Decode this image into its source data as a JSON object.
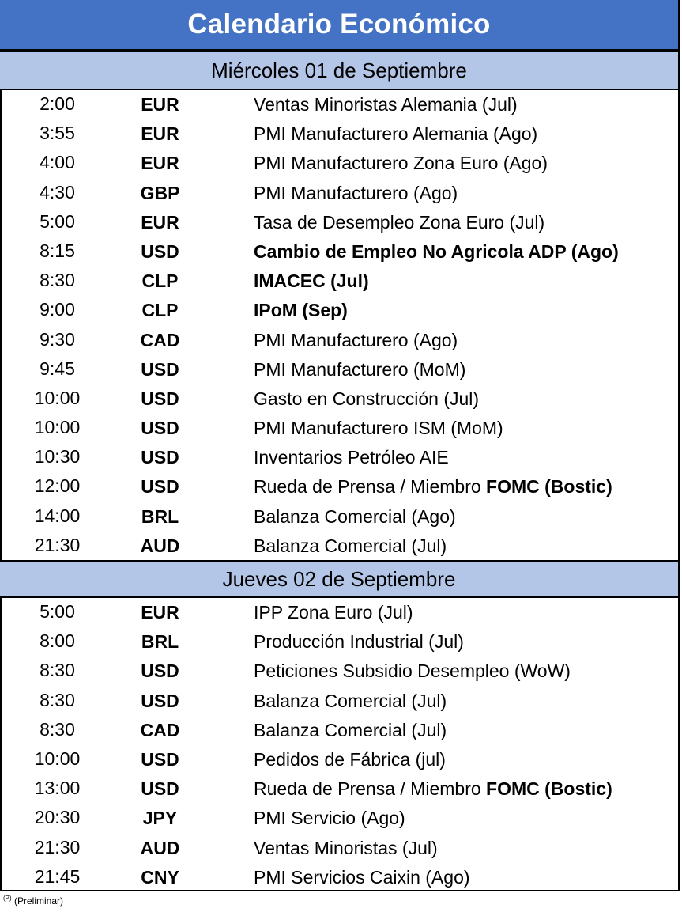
{
  "title": "Calendario Económico",
  "days": [
    {
      "label": "Miércoles 01 de Septiembre",
      "events": [
        {
          "time": "2:00",
          "ccy": "EUR",
          "event": "Ventas Minoristas Alemania (Jul)"
        },
        {
          "time": "3:55",
          "ccy": "EUR",
          "event": "PMI Manufacturero Alemania (Ago)"
        },
        {
          "time": "4:00",
          "ccy": "EUR",
          "event": "PMI Manufacturero Zona Euro (Ago)"
        },
        {
          "time": "4:30",
          "ccy": "GBP",
          "event": "PMI Manufacturero (Ago)"
        },
        {
          "time": "5:00",
          "ccy": "EUR",
          "event": "Tasa de Desempleo Zona Euro (Jul)"
        },
        {
          "time": "8:15",
          "ccy": "USD",
          "event": "Cambio de Empleo No Agricola ADP (Ago)"
        },
        {
          "time": "8:30",
          "ccy": "CLP",
          "event": "IMACEC (Jul)"
        },
        {
          "time": "9:00",
          "ccy": "CLP",
          "event": "IPoM (Sep)"
        },
        {
          "time": "9:30",
          "ccy": "CAD",
          "event": "PMI Manufacturero (Ago)"
        },
        {
          "time": "9:45",
          "ccy": "USD",
          "event": "PMI Manufacturero (MoM)"
        },
        {
          "time": "10:00",
          "ccy": "USD",
          "event": "Gasto en Construcción (Jul)"
        },
        {
          "time": "10:00",
          "ccy": "USD",
          "event": "PMI Manufacturero ISM (MoM)"
        },
        {
          "time": "10:30",
          "ccy": "USD",
          "event": "Inventarios Petróleo AIE"
        },
        {
          "time": "12:00",
          "ccy": "USD",
          "event": "Rueda de Prensa / Miembro ",
          "event_bold": "FOMC (Bostic)"
        },
        {
          "time": "14:00",
          "ccy": "BRL",
          "event": "Balanza Comercial (Ago)"
        },
        {
          "time": "21:30",
          "ccy": "AUD",
          "event": "Balanza Comercial (Jul)"
        }
      ]
    },
    {
      "label": "Jueves 02 de Septiembre",
      "events": [
        {
          "time": "5:00",
          "ccy": "EUR",
          "event": "IPP Zona Euro (Jul)"
        },
        {
          "time": "8:00",
          "ccy": "BRL",
          "event": "Producción Industrial (Jul)"
        },
        {
          "time": "8:30",
          "ccy": "USD",
          "event": "Peticiones Subsidio Desempleo (WoW)"
        },
        {
          "time": "8:30",
          "ccy": "USD",
          "event": "Balanza Comercial (Jul)"
        },
        {
          "time": "8:30",
          "ccy": "CAD",
          "event": "Balanza Comercial (Jul)"
        },
        {
          "time": "10:00",
          "ccy": "USD",
          "event": "Pedidos de Fábrica (jul)"
        },
        {
          "time": "13:00",
          "ccy": "USD",
          "event": "Rueda de Prensa / Miembro ",
          "event_bold": "FOMC (Bostic)"
        },
        {
          "time": "20:30",
          "ccy": "JPY",
          "event": "PMI Servicio (Ago)"
        },
        {
          "time": "21:30",
          "ccy": "AUD",
          "event": "Ventas Minoristas (Jul)"
        },
        {
          "time": "21:45",
          "ccy": "CNY",
          "event": "PMI Servicios Caixin (Ago)"
        }
      ]
    }
  ],
  "footnote_mark": "(P)",
  "footnote": "(Preliminar)"
}
